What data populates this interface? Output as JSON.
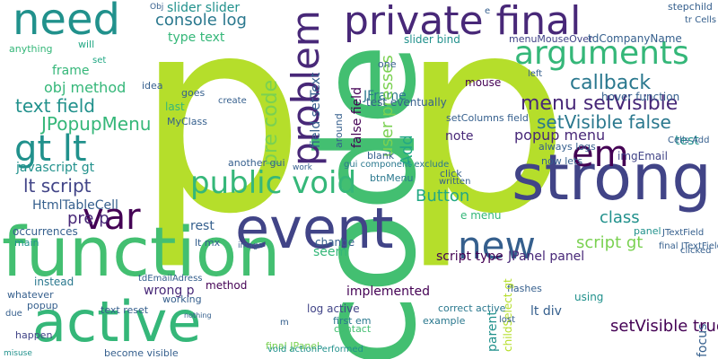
{
  "words": [
    "p",
    "p",
    "code",
    "function",
    "event",
    "strong",
    "active",
    "public void",
    "private final",
    "arguments",
    "need",
    "new",
    "var",
    "em",
    "gt lt",
    "problem",
    "callback",
    "menu setVisible",
    "setVisible false",
    "text field",
    "JPopupMenu",
    "console log",
    "slider slider",
    "pre code",
    "lt script",
    "javascript gt",
    "obj method",
    "frame",
    "HtmlTableCell",
    "pre p",
    "class",
    "script gt",
    "popup menu",
    "test",
    "type text",
    "slider bind",
    "tdCompanyName",
    "hover function",
    "menuMouseOver",
    "stepchild",
    "setColumns field",
    "JFrame",
    "mouse",
    "page",
    "imgEmail",
    "always logs",
    "now lets",
    "flashes",
    "JPanel panel",
    "panel",
    "script type",
    "e menu",
    "setVisible true",
    "lt div",
    "parent",
    "childSelect gt",
    "correct active",
    "example",
    "first em",
    "contact",
    "implemented",
    "change",
    "seem",
    "log active",
    "wrong p",
    "method",
    "instead",
    "tdEmailAdress",
    "text reset",
    "whatever",
    "due",
    "happen",
    "misuse",
    "become visible",
    "final JPanel",
    "nothing",
    "void actionPerformed",
    "working",
    "rest",
    "lt mx",
    "image",
    "gui component exclude",
    "btnMenu",
    "Button",
    "click",
    "written",
    "user presses",
    "Add",
    "false field",
    "field setText",
    "around",
    "test eventually",
    "one",
    "left",
    "note",
    "last",
    "MyClass",
    "idea",
    "goes",
    "create",
    "another gui",
    "work",
    "set",
    "anything",
    "occurrences",
    "main",
    "popup",
    "will",
    "Cells Add",
    "JTextField",
    "final JTextField",
    "clicked",
    "lost",
    "focus",
    "tr Cells",
    "Obj",
    "blank",
    "using",
    "e",
    "m",
    "u"
  ],
  "colors": {
    "yellow_green": "#b5de2b",
    "indigo": "#414487",
    "teal_blue": "#2a788e",
    "green_teal": "#22a884",
    "light_green": "#7ad151",
    "dark_purple": "#440154",
    "green": "#35b779",
    "blue": "#355f8d",
    "teal": "#21918c",
    "violet": "#482878",
    "yellow": "#fde725",
    "emerald": "#43bf71"
  }
}
